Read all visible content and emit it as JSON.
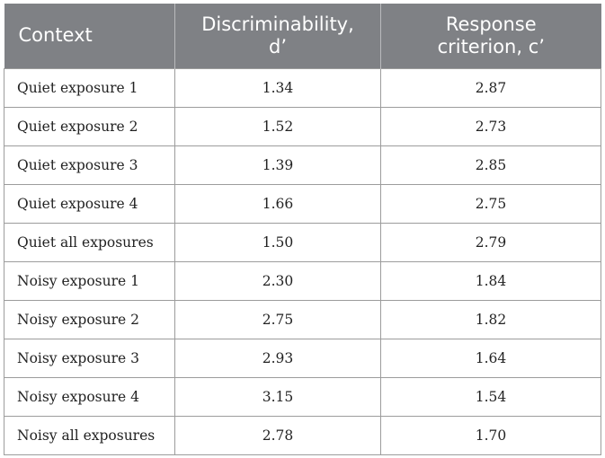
{
  "table": {
    "headers": {
      "context": "Context",
      "discriminability_line1": "Discriminability,",
      "discriminability_line2": "d’",
      "criterion_line1": "Response",
      "criterion_line2": "criterion, c’"
    },
    "rows": [
      {
        "context": "Quiet exposure 1",
        "d": "1.34",
        "c": "2.87"
      },
      {
        "context": "Quiet exposure 2",
        "d": "1.52",
        "c": "2.73"
      },
      {
        "context": "Quiet exposure 3",
        "d": "1.39",
        "c": "2.85"
      },
      {
        "context": "Quiet exposure 4",
        "d": "1.66",
        "c": "2.75"
      },
      {
        "context": "Quiet all exposures",
        "d": "1.50",
        "c": "2.79"
      },
      {
        "context": "Noisy exposure 1",
        "d": "2.30",
        "c": "1.84"
      },
      {
        "context": "Noisy exposure 2",
        "d": "2.75",
        "c": "1.82"
      },
      {
        "context": "Noisy exposure 3",
        "d": "2.93",
        "c": "1.64"
      },
      {
        "context": "Noisy exposure 4",
        "d": "3.15",
        "c": "1.54"
      },
      {
        "context": "Noisy all exposures",
        "d": "2.78",
        "c": "1.70"
      }
    ]
  }
}
